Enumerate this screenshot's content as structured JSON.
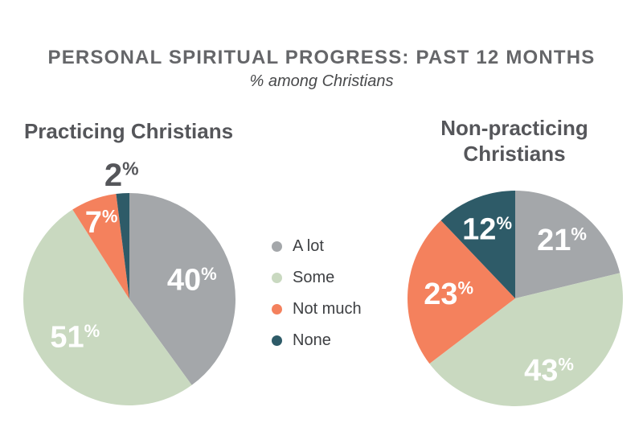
{
  "header": {
    "title": "PERSONAL SPIRITUAL PROGRESS: PAST 12 MONTHS",
    "subtitle": "% among Christians"
  },
  "colors": {
    "gray": "#a4a7aa",
    "green": "#c9d9c0",
    "orange": "#f4815d",
    "teal": "#2e5b68",
    "title_text": "#656669",
    "heading_text": "#55565a",
    "value_label_inside": "#ffffff",
    "value_label_outside": "#55565a",
    "legend_text": "#3e4043"
  },
  "legend": {
    "position": "center-between-pies",
    "items": [
      {
        "label": "A lot",
        "color_key": "gray"
      },
      {
        "label": "Some",
        "color_key": "green"
      },
      {
        "label": "Not much",
        "color_key": "orange"
      },
      {
        "label": "None",
        "color_key": "teal"
      }
    ]
  },
  "chart_data": [
    {
      "type": "pie",
      "title": "Practicing Christians",
      "units": "%",
      "start_angle_deg": 0,
      "direction": "clockwise",
      "radius_px": 132,
      "slices": [
        {
          "label": "A lot",
          "value": 40,
          "color_key": "gray",
          "label_r": 0.62
        },
        {
          "label": "Some",
          "value": 51,
          "color_key": "green",
          "label_r": 0.62
        },
        {
          "label": "Not much",
          "value": 7,
          "color_key": "orange",
          "label_r": 0.78
        },
        {
          "label": "None",
          "value": 2,
          "color_key": "teal",
          "label_r": 1.18,
          "label_outside": true
        }
      ]
    },
    {
      "type": "pie",
      "title": "Non-practicing Christians",
      "units": "%",
      "start_angle_deg": 0,
      "direction": "clockwise",
      "radius_px": 134,
      "slices": [
        {
          "label": "A lot",
          "value": 21,
          "color_key": "gray",
          "label_r": 0.7
        },
        {
          "label": "Some",
          "value": 43,
          "color_key": "green",
          "label_r": 0.73
        },
        {
          "label": "Not much",
          "value": 23,
          "color_key": "orange",
          "label_r": 0.62
        },
        {
          "label": "None",
          "value": 12,
          "color_key": "teal",
          "label_r": 0.7
        }
      ]
    }
  ]
}
